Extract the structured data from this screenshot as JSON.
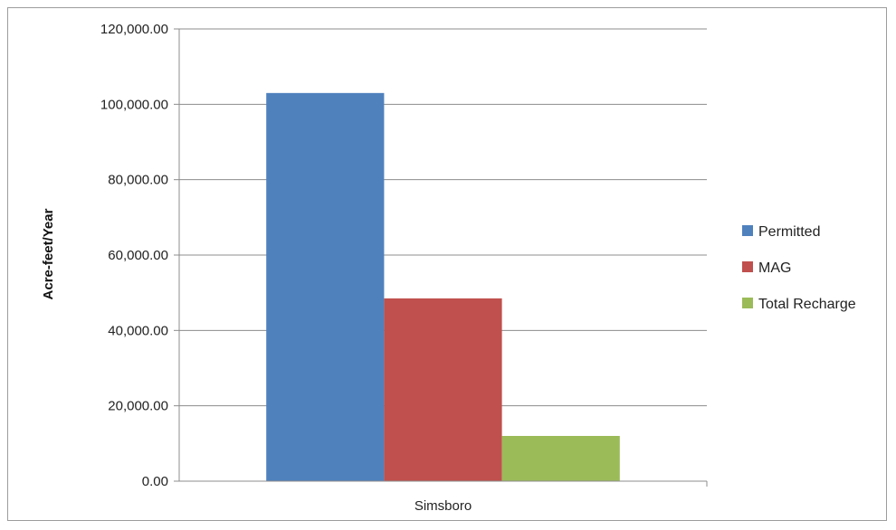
{
  "chart_data": {
    "type": "bar",
    "categories": [
      "Simsboro"
    ],
    "series": [
      {
        "name": "Permitted",
        "values": [
          103000
        ],
        "color": "#4f81bd"
      },
      {
        "name": "MAG",
        "values": [
          48500
        ],
        "color": "#c0504d"
      },
      {
        "name": "Total Recharge",
        "values": [
          12000
        ],
        "color": "#9bbb59"
      }
    ],
    "xlabel": "",
    "ylabel": "Acre-feet/Year",
    "ylim": [
      0,
      120000
    ],
    "yticks": [
      0,
      20000,
      40000,
      60000,
      80000,
      100000,
      120000
    ],
    "ytick_labels": [
      "0.00",
      "20,000.00",
      "40,000.00",
      "60,000.00",
      "80,000.00",
      "100,000.00",
      "120,000.00"
    ],
    "grid": true,
    "legend_position": "right"
  }
}
